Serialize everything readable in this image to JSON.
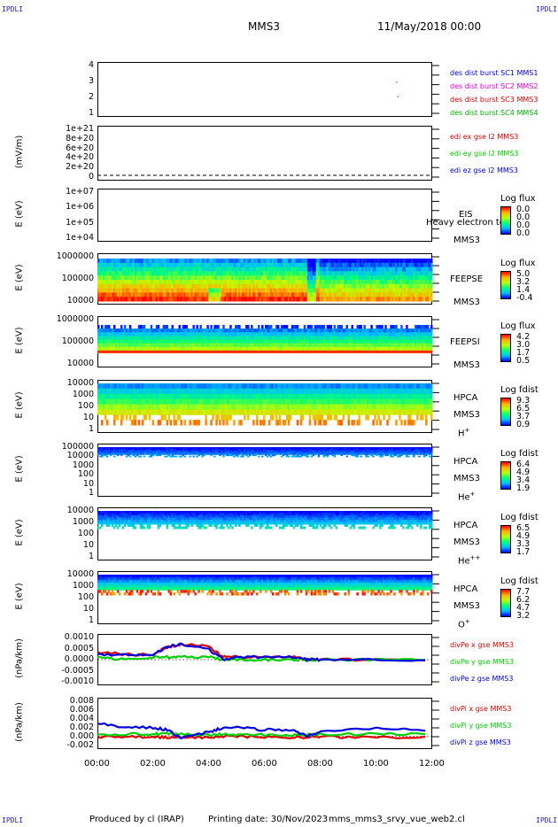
{
  "corners": {
    "tl": "IPDLI",
    "tr": "IPDLI",
    "bl": "IPDLI",
    "br": "IPDLI"
  },
  "header": {
    "spacecraft": "MMS3",
    "date": "11/May/2018 00:00"
  },
  "footer": {
    "produced": "Produced by cl (IRAP)",
    "printing": "Printing date: 30/Nov/2023",
    "file": "mms_mms3_srvy_vue_web2.cl"
  },
  "colors": {
    "red": "#e00000",
    "green": "#00d000",
    "blue": "#0000e0",
    "magenta": "#e000e0",
    "darkgreen": "#00b000"
  },
  "x_ticks": [
    "00:00",
    "02:00",
    "04:00",
    "06:00",
    "08:00",
    "10:00",
    "12:00"
  ],
  "panels": {
    "p1": {
      "yticks": [
        "4",
        "3",
        "2",
        "1"
      ],
      "legend": [
        "des dist burst SC1 MMS1",
        "des dist burst SC2 MMS2",
        "des dist burst SC3 MMS3",
        "des dist burst SC4 MMS4"
      ]
    },
    "p2": {
      "ylabel": "(mV/m)",
      "yticks": [
        "1e+21",
        "8e+20",
        "6e+20",
        "4e+20",
        "2e+20",
        "0"
      ],
      "legend": [
        "edi ex gse l2 MMS3",
        "edi ey gse l2 MMS3",
        "edi ez gse l2 MMS3"
      ]
    },
    "p3": {
      "ylabel": "E (eV)",
      "yticks": [
        "1e+07",
        "1e+06",
        "1e+05",
        "1e+04"
      ],
      "side": [
        "EIS",
        "Heavy electron to",
        "MMS3"
      ],
      "cb_title": "Log flux",
      "cb_vals": [
        "0.0",
        "0.0",
        "0.0",
        "0.0"
      ]
    },
    "p4": {
      "ylabel": "E (eV)",
      "yticks": [
        "1000000",
        "100000",
        "10000"
      ],
      "side": [
        "FEEPSE",
        "MMS3"
      ],
      "cb_title": "Log flux",
      "cb_vals": [
        "5.0",
        "3.2",
        "1.4",
        "-0.4"
      ]
    },
    "p5": {
      "ylabel": "E (eV)",
      "yticks": [
        "1000000",
        "100000",
        "10000"
      ],
      "side": [
        "FEEPSI",
        "MMS3"
      ],
      "cb_title": "Log flux",
      "cb_vals": [
        "4.2",
        "3.0",
        "1.7",
        "0.5"
      ]
    },
    "p6": {
      "ylabel": "E (eV)",
      "yticks": [
        "10000",
        "1000",
        "100",
        "10",
        "1"
      ],
      "side": [
        "HPCA",
        "MMS3",
        "H"
      ],
      "sup": "+",
      "cb_title": "Log fdist",
      "cb_vals": [
        "9.3",
        "6.5",
        "3.7",
        "0.9"
      ]
    },
    "p7": {
      "ylabel": "E (eV)",
      "yticks": [
        "100000",
        "10000",
        "1000",
        "100",
        "10",
        "1"
      ],
      "side": [
        "HPCA",
        "MMS3",
        "He"
      ],
      "sup": "+",
      "cb_title": "Log fdist",
      "cb_vals": [
        "6.4",
        "4.9",
        "3.4",
        "1.9"
      ]
    },
    "p8": {
      "ylabel": "E (eV)",
      "yticks": [
        "10000",
        "1000",
        "100",
        "10",
        "1"
      ],
      "side": [
        "HPCA",
        "MMS3",
        "He"
      ],
      "sup": "++",
      "cb_title": "Log fdist",
      "cb_vals": [
        "6.5",
        "4.9",
        "3.3",
        "1.7"
      ]
    },
    "p9": {
      "ylabel": "E (eV)",
      "yticks": [
        "10000",
        "1000",
        "100",
        "10",
        "1"
      ],
      "side": [
        "HPCA",
        "MMS3",
        "O"
      ],
      "sup": "+",
      "cb_title": "Log fdist",
      "cb_vals": [
        "7.7",
        "6.2",
        "4.7",
        "3.2"
      ]
    },
    "p10": {
      "ylabel": "(nPa/km)",
      "yticks": [
        "0.0010",
        "0.0005",
        "0.0000",
        "-0.0005",
        "-0.0010"
      ],
      "legend": [
        "divPe x gse MMS3",
        "divPe y gse MMS3",
        "divPe z gse MMS3"
      ]
    },
    "p11": {
      "ylabel": "(nPa/km)",
      "yticks": [
        "0.008",
        "0.006",
        "0.004",
        "0.002",
        "0.000",
        "-0.002"
      ],
      "legend": [
        "divPi x gse MMS3",
        "divPi y gse MMS3",
        "divPi z gse MMS3"
      ]
    }
  },
  "chart_data": [
    {
      "type": "scatter",
      "title": "des dist burst",
      "x_range": [
        "00:00",
        "12:00"
      ],
      "ylim": [
        0.5,
        4.5
      ],
      "series": [
        {
          "name": "des dist burst SC3 MMS3",
          "x": [
            "10:42",
            "10:44"
          ],
          "y": [
            3,
            2
          ]
        }
      ]
    },
    {
      "type": "line",
      "ylabel": "(mV/m)",
      "ylim": [
        0,
        1e+21
      ],
      "series": [
        {
          "name": "edi ex gse l2 MMS3",
          "values": [
            0,
            0
          ]
        },
        {
          "name": "edi ey gse l2 MMS3",
          "values": [
            0,
            0
          ]
        },
        {
          "name": "edi ez gse l2 MMS3",
          "values": [
            0,
            0
          ]
        }
      ]
    },
    {
      "type": "heatmap",
      "ylabel": "E (eV)",
      "instrument": "FEEPSE",
      "scale": "log",
      "ylim": [
        10000,
        1000000
      ],
      "colorbar": "Log flux",
      "color_range": [
        -0.4,
        5.0
      ]
    },
    {
      "type": "heatmap",
      "ylabel": "E (eV)",
      "instrument": "FEEPSI",
      "scale": "log",
      "ylim": [
        10000,
        1000000
      ],
      "colorbar": "Log flux",
      "color_range": [
        0.5,
        4.2
      ]
    },
    {
      "type": "heatmap",
      "ylabel": "E (eV)",
      "instrument": "HPCA H+",
      "scale": "log",
      "ylim": [
        1,
        10000
      ],
      "colorbar": "Log fdist",
      "color_range": [
        0.9,
        9.3
      ]
    },
    {
      "type": "heatmap",
      "ylabel": "E (eV)",
      "instrument": "HPCA He+",
      "scale": "log",
      "ylim": [
        1,
        100000
      ],
      "colorbar": "Log fdist",
      "color_range": [
        1.9,
        6.4
      ]
    },
    {
      "type": "heatmap",
      "ylabel": "E (eV)",
      "instrument": "HPCA He++",
      "scale": "log",
      "ylim": [
        1,
        10000
      ],
      "colorbar": "Log fdist",
      "color_range": [
        1.7,
        6.5
      ]
    },
    {
      "type": "heatmap",
      "ylabel": "E (eV)",
      "instrument": "HPCA O+",
      "scale": "log",
      "ylim": [
        1,
        10000
      ],
      "colorbar": "Log fdist",
      "color_range": [
        3.2,
        7.7
      ]
    },
    {
      "type": "line",
      "ylabel": "(nPa/km)",
      "ylim": [
        -0.001,
        0.001
      ],
      "x": [
        "00:00",
        "01:00",
        "02:00",
        "02:30",
        "03:00",
        "04:00",
        "04:30",
        "05:00",
        "06:00",
        "07:00",
        "07:30",
        "08:00",
        "10:00",
        "12:00"
      ],
      "series": [
        {
          "name": "divPe x gse MMS3",
          "values": [
            0.0003,
            0.0002,
            0.0002,
            0.0005,
            0.0006,
            0.0005,
            0.0001,
            0.0001,
            0.0001,
            0.0001,
            0.0,
            0.0,
            0.0,
            0.0
          ]
        },
        {
          "name": "divPe y gse MMS3",
          "values": [
            0.0001,
            0.0,
            0.0001,
            0.0001,
            0.0001,
            0.0001,
            0.0,
            0.0,
            0.0,
            0.0,
            0.0,
            0.0,
            0.0,
            0.0
          ]
        },
        {
          "name": "divPe z gse MMS3",
          "values": [
            0.0002,
            0.0002,
            0.0002,
            0.0005,
            0.0006,
            0.0004,
            0.0,
            0.0001,
            0.0001,
            0.0001,
            0.0,
            0.0,
            0.0,
            0.0
          ]
        }
      ]
    },
    {
      "type": "line",
      "ylabel": "(nPa/km)",
      "ylim": [
        -0.003,
        0.009
      ],
      "x": [
        "00:00",
        "01:00",
        "02:00",
        "02:30",
        "03:00",
        "04:00",
        "04:30",
        "05:00",
        "06:00",
        "07:00",
        "07:30",
        "08:00",
        "10:00",
        "12:00"
      ],
      "series": [
        {
          "name": "divPi x gse MMS3",
          "values": [
            -0.0002,
            -0.0002,
            -0.0002,
            -0.0003,
            -0.0003,
            -0.0002,
            0.0,
            0.0,
            -0.0002,
            -0.0002,
            -0.0002,
            -0.0002,
            -0.0002,
            -0.0002
          ]
        },
        {
          "name": "divPi y gse MMS3",
          "values": [
            0.0005,
            0.0005,
            0.0005,
            0.0005,
            0.0004,
            0.0003,
            0.0004,
            0.0003,
            0.0003,
            0.0003,
            0.0003,
            0.0004,
            0.0005,
            0.0005
          ]
        },
        {
          "name": "divPi z gse MMS3",
          "values": [
            0.003,
            0.002,
            0.002,
            0.0015,
            -0.0005,
            0.001,
            0.002,
            0.002,
            0.0015,
            0.0015,
            0.0,
            0.001,
            0.002,
            0.0015
          ]
        }
      ]
    }
  ]
}
